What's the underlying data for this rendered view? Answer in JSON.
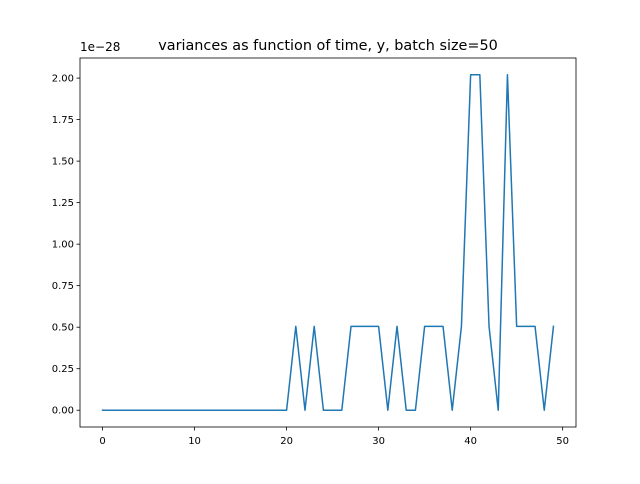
{
  "chart_data": {
    "type": "line",
    "title": "variances as function of time, y, batch size=50",
    "xlabel": "",
    "ylabel": "",
    "y_offset_label": "1e−28",
    "xlim": [
      -2.45,
      51.45
    ],
    "ylim": [
      -0.101,
      2.121
    ],
    "x_ticks": [
      0,
      10,
      20,
      30,
      40,
      50
    ],
    "x_tick_labels": [
      "0",
      "10",
      "20",
      "30",
      "40",
      "50"
    ],
    "y_ticks": [
      0.0,
      0.25,
      0.5,
      0.75,
      1.0,
      1.25,
      1.5,
      1.75,
      2.0
    ],
    "y_tick_labels": [
      "0.00",
      "0.25",
      "0.50",
      "0.75",
      "1.00",
      "1.25",
      "1.50",
      "1.75",
      "2.00"
    ],
    "grid": false,
    "colors": {
      "line": "#1f77b4"
    },
    "series": [
      {
        "x": [
          0,
          1,
          2,
          3,
          4,
          5,
          6,
          7,
          8,
          9,
          10,
          11,
          12,
          13,
          14,
          15,
          16,
          17,
          18,
          19,
          20,
          21,
          22,
          23,
          24,
          25,
          26,
          27,
          28,
          29,
          30,
          31,
          32,
          33,
          34,
          35,
          36,
          37,
          38,
          39,
          40,
          41,
          42,
          43,
          44,
          45,
          46,
          47,
          48,
          49
        ],
        "values": [
          0,
          0,
          0,
          0,
          0,
          0,
          0,
          0,
          0,
          0,
          0,
          0,
          0,
          0,
          0,
          0,
          0,
          0,
          0,
          0,
          0,
          0.505,
          0,
          0.505,
          0,
          0,
          0,
          0.505,
          0.505,
          0.505,
          0.505,
          0,
          0.505,
          0,
          0,
          0.505,
          0.505,
          0.505,
          0,
          0.505,
          2.02,
          2.02,
          0.505,
          0,
          2.02,
          0.505,
          0.505,
          0.505,
          0,
          0.505
        ]
      }
    ]
  }
}
